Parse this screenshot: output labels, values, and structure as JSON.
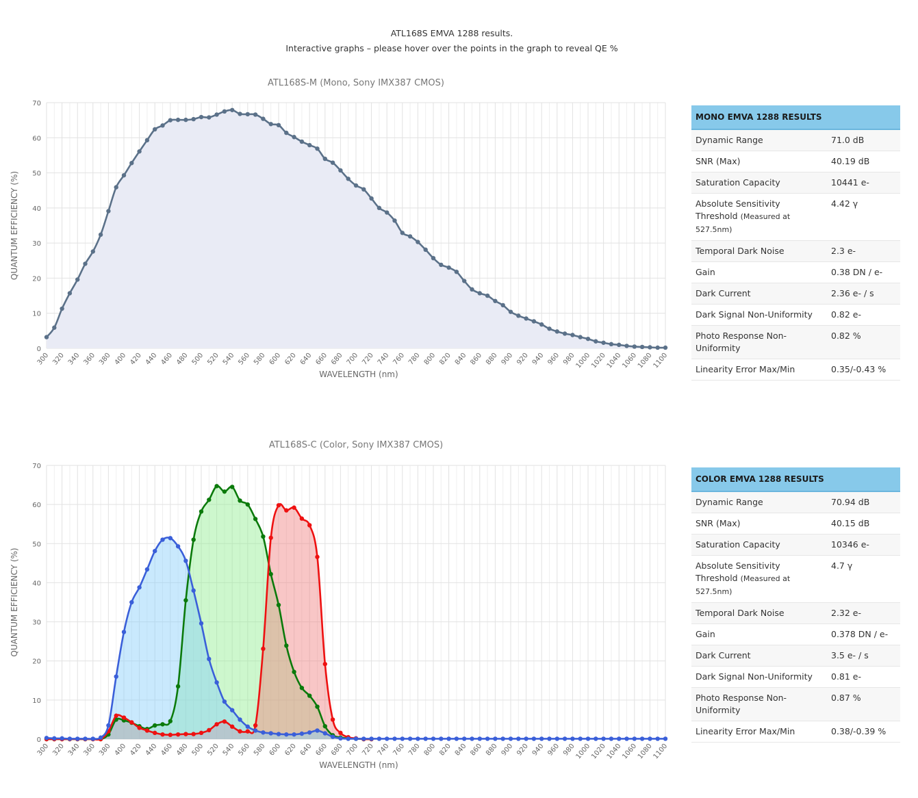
{
  "intro": {
    "line1": "ATL168S EMVA 1288 results.",
    "line2": "Interactive graphs – please hover over the points in the graph to reveal QE %"
  },
  "mono_table": {
    "title": "MONO EMVA 1288 RESULTS",
    "rows": [
      {
        "label": "Dynamic Range",
        "value": "71.0 dB"
      },
      {
        "label": "SNR (Max)",
        "value": "40.19 dB"
      },
      {
        "label": "Saturation Capacity",
        "value": "10441 e-"
      },
      {
        "label": "Absolute Sensitivity Threshold",
        "note": "(Measured at 527.5nm)",
        "value": "4.42 γ"
      },
      {
        "label": "Temporal Dark Noise",
        "value": "2.3 e-"
      },
      {
        "label": "Gain",
        "value": "0.38 DN / e-"
      },
      {
        "label": "Dark Current",
        "value": "2.36 e- / s"
      },
      {
        "label": "Dark Signal Non-Uniformity",
        "value": "0.82 e-"
      },
      {
        "label": "Photo Response Non-Uniformity",
        "value": "0.82 %"
      },
      {
        "label": "Linearity Error Max/Min",
        "value": "0.35/-0.43 %"
      }
    ]
  },
  "color_table": {
    "title": "COLOR EMVA 1288 RESULTS",
    "rows": [
      {
        "label": "Dynamic Range",
        "value": "70.94 dB"
      },
      {
        "label": "SNR (Max)",
        "value": "40.15 dB"
      },
      {
        "label": "Saturation Capacity",
        "value": "10346 e-"
      },
      {
        "label": "Absolute Sensitivity Threshold",
        "note": "(Measured at 527.5nm)",
        "value": "4.7 γ"
      },
      {
        "label": "Temporal Dark Noise",
        "value": "2.32 e-"
      },
      {
        "label": "Gain",
        "value": "0.378 DN / e-"
      },
      {
        "label": "Dark Current",
        "value": "3.5 e- / s"
      },
      {
        "label": "Dark Signal Non-Uniformity",
        "value": "0.81 e-"
      },
      {
        "label": "Photo Response Non-Uniformity",
        "value": "0.87 %"
      },
      {
        "label": "Linearity Error Max/Min",
        "value": "0.38/-0.39 %"
      }
    ]
  },
  "chart_data": [
    {
      "type": "area",
      "title": "ATL168S-M (Mono, Sony IMX387 CMOS)",
      "xlabel": "WAVELENGTH (nm)",
      "ylabel": "QUANTUM EFFICIENCY (%)",
      "xlim": [
        300,
        1100
      ],
      "ylim": [
        0,
        70
      ],
      "x_ticks": [
        300,
        320,
        340,
        360,
        380,
        400,
        420,
        440,
        460,
        480,
        500,
        520,
        540,
        560,
        580,
        600,
        620,
        640,
        660,
        680,
        700,
        720,
        740,
        760,
        780,
        800,
        820,
        840,
        860,
        880,
        900,
        920,
        940,
        960,
        980,
        1000,
        1020,
        1040,
        1060,
        1080,
        1100
      ],
      "y_ticks": [
        0,
        10,
        20,
        30,
        40,
        50,
        60,
        70
      ],
      "grid": true,
      "series": [
        {
          "color": "#5b7189",
          "fill": "#e9ebf5",
          "x": [
            300,
            310,
            320,
            330,
            340,
            350,
            360,
            370,
            380,
            390,
            400,
            410,
            420,
            430,
            440,
            450,
            460,
            470,
            480,
            490,
            500,
            510,
            520,
            530,
            540,
            550,
            560,
            570,
            580,
            590,
            600,
            610,
            620,
            630,
            640,
            650,
            660,
            670,
            680,
            690,
            700,
            710,
            720,
            730,
            740,
            750,
            760,
            770,
            780,
            790,
            800,
            810,
            820,
            830,
            840,
            850,
            860,
            870,
            880,
            890,
            900,
            910,
            920,
            930,
            940,
            950,
            960,
            970,
            980,
            990,
            1000,
            1010,
            1020,
            1030,
            1040,
            1050,
            1060,
            1070,
            1080,
            1090,
            1100
          ],
          "y": [
            3.2,
            5.9,
            11.3,
            15.7,
            19.6,
            24.1,
            27.6,
            32.4,
            39.1,
            45.9,
            49.3,
            52.8,
            56.1,
            59.3,
            62.4,
            63.5,
            65.0,
            65.1,
            65.1,
            65.3,
            65.9,
            65.8,
            66.6,
            67.5,
            67.9,
            66.8,
            66.7,
            66.6,
            65.4,
            63.9,
            63.6,
            61.4,
            60.2,
            58.9,
            57.9,
            56.9,
            54.0,
            52.9,
            50.7,
            48.3,
            46.4,
            45.3,
            42.7,
            40.0,
            38.7,
            36.4,
            32.9,
            31.9,
            30.3,
            28.1,
            25.7,
            23.8,
            23.0,
            21.8,
            19.2,
            16.8,
            15.7,
            15.0,
            13.5,
            12.3,
            10.4,
            9.3,
            8.5,
            7.7,
            6.8,
            5.6,
            4.8,
            4.2,
            3.8,
            3.2,
            2.7,
            2.0,
            1.6,
            1.2,
            1.0,
            0.7,
            0.5,
            0.4,
            0.3,
            0.2,
            0.2
          ]
        }
      ]
    },
    {
      "type": "area",
      "title": "ATL168S-C (Color, Sony IMX387 CMOS)",
      "xlabel": "WAVELENGTH (nm)",
      "ylabel": "QUANTUM EFFICIENCY (%)",
      "xlim": [
        300,
        1100
      ],
      "ylim": [
        0,
        70
      ],
      "x_ticks": [
        300,
        320,
        340,
        360,
        380,
        400,
        420,
        440,
        460,
        480,
        500,
        520,
        540,
        560,
        580,
        600,
        620,
        640,
        660,
        680,
        700,
        720,
        740,
        760,
        780,
        800,
        820,
        840,
        860,
        880,
        900,
        920,
        940,
        960,
        980,
        1000,
        1020,
        1040,
        1060,
        1080,
        1100
      ],
      "y_ticks": [
        0,
        10,
        20,
        30,
        40,
        50,
        60,
        70
      ],
      "grid": true,
      "series": [
        {
          "color": "#0b7a0b",
          "fill": "rgba(144,238,144,0.45)",
          "x": [
            300,
            310,
            320,
            330,
            340,
            350,
            360,
            370,
            380,
            390,
            400,
            410,
            420,
            430,
            440,
            450,
            460,
            470,
            480,
            490,
            500,
            510,
            520,
            530,
            540,
            550,
            560,
            570,
            580,
            590,
            600,
            610,
            620,
            630,
            640,
            650,
            660,
            670,
            680,
            690,
            700,
            710,
            720
          ],
          "y": [
            0,
            0,
            0,
            0,
            0,
            0,
            0,
            0,
            1.2,
            5.0,
            4.8,
            4.2,
            3.3,
            2.6,
            3.5,
            3.8,
            4.6,
            13.5,
            35.5,
            51.0,
            58.2,
            61.2,
            64.7,
            63.3,
            64.5,
            61.0,
            60.0,
            56.3,
            51.8,
            42.2,
            34.3,
            23.9,
            17.2,
            13.1,
            11.1,
            8.3,
            3.3,
            1.0,
            0.4,
            0.2,
            0.1,
            0,
            0
          ]
        },
        {
          "color": "#ee1111",
          "fill": "rgba(240,128,128,0.45)",
          "x": [
            300,
            310,
            320,
            330,
            340,
            350,
            360,
            370,
            380,
            390,
            400,
            410,
            420,
            430,
            440,
            450,
            460,
            470,
            480,
            490,
            500,
            510,
            520,
            530,
            540,
            550,
            560,
            570,
            580,
            590,
            600,
            610,
            620,
            630,
            640,
            650,
            660,
            670,
            680,
            690,
            700,
            710,
            720
          ],
          "y": [
            0,
            0,
            0,
            0,
            0,
            0,
            0,
            0,
            2.0,
            6.0,
            5.5,
            4.3,
            2.9,
            2.2,
            1.6,
            1.2,
            1.1,
            1.2,
            1.3,
            1.3,
            1.6,
            2.3,
            3.8,
            4.5,
            3.2,
            2.0,
            2.0,
            3.5,
            23.1,
            51.5,
            59.8,
            58.5,
            59.2,
            56.4,
            54.7,
            46.6,
            19.2,
            5.0,
            1.6,
            0.5,
            0.2,
            0,
            0
          ]
        },
        {
          "color": "#3a5fd9",
          "fill": "rgba(135,206,250,0.45)",
          "x": [
            300,
            310,
            320,
            330,
            340,
            350,
            360,
            370,
            380,
            390,
            400,
            410,
            420,
            430,
            440,
            450,
            460,
            470,
            480,
            490,
            500,
            510,
            520,
            530,
            540,
            550,
            560,
            570,
            580,
            590,
            600,
            610,
            620,
            630,
            640,
            650,
            660,
            670,
            680,
            690,
            700,
            710,
            720,
            730,
            740,
            750,
            760,
            770,
            780,
            790,
            800,
            810,
            820,
            830,
            840,
            850,
            860,
            870,
            880,
            890,
            900,
            910,
            920,
            930,
            940,
            950,
            960,
            970,
            980,
            990,
            1000,
            1010,
            1020,
            1030,
            1040,
            1050,
            1060,
            1070,
            1080,
            1090,
            1100
          ],
          "y": [
            0.3,
            0.2,
            0.2,
            0.1,
            0.1,
            0.1,
            0.1,
            0.4,
            3.5,
            16.0,
            27.4,
            35.0,
            38.8,
            43.4,
            48.1,
            51.0,
            51.4,
            49.3,
            45.6,
            38.0,
            29.6,
            20.5,
            14.5,
            9.6,
            7.4,
            5.0,
            3.2,
            2.2,
            1.7,
            1.5,
            1.3,
            1.2,
            1.2,
            1.4,
            1.7,
            2.2,
            1.5,
            0.6,
            0.2,
            0.1,
            0.1,
            0.1,
            0.1,
            0.1,
            0.1,
            0.1,
            0.1,
            0.1,
            0.1,
            0.1,
            0.1,
            0.1,
            0.1,
            0.1,
            0.1,
            0.1,
            0.1,
            0.1,
            0.1,
            0.1,
            0.1,
            0.1,
            0.1,
            0.1,
            0.1,
            0.1,
            0.1,
            0.1,
            0.1,
            0.1,
            0.1,
            0.1,
            0.1,
            0.1,
            0.1,
            0.1,
            0.1,
            0.1,
            0.1,
            0.1,
            0.1
          ]
        }
      ]
    }
  ]
}
